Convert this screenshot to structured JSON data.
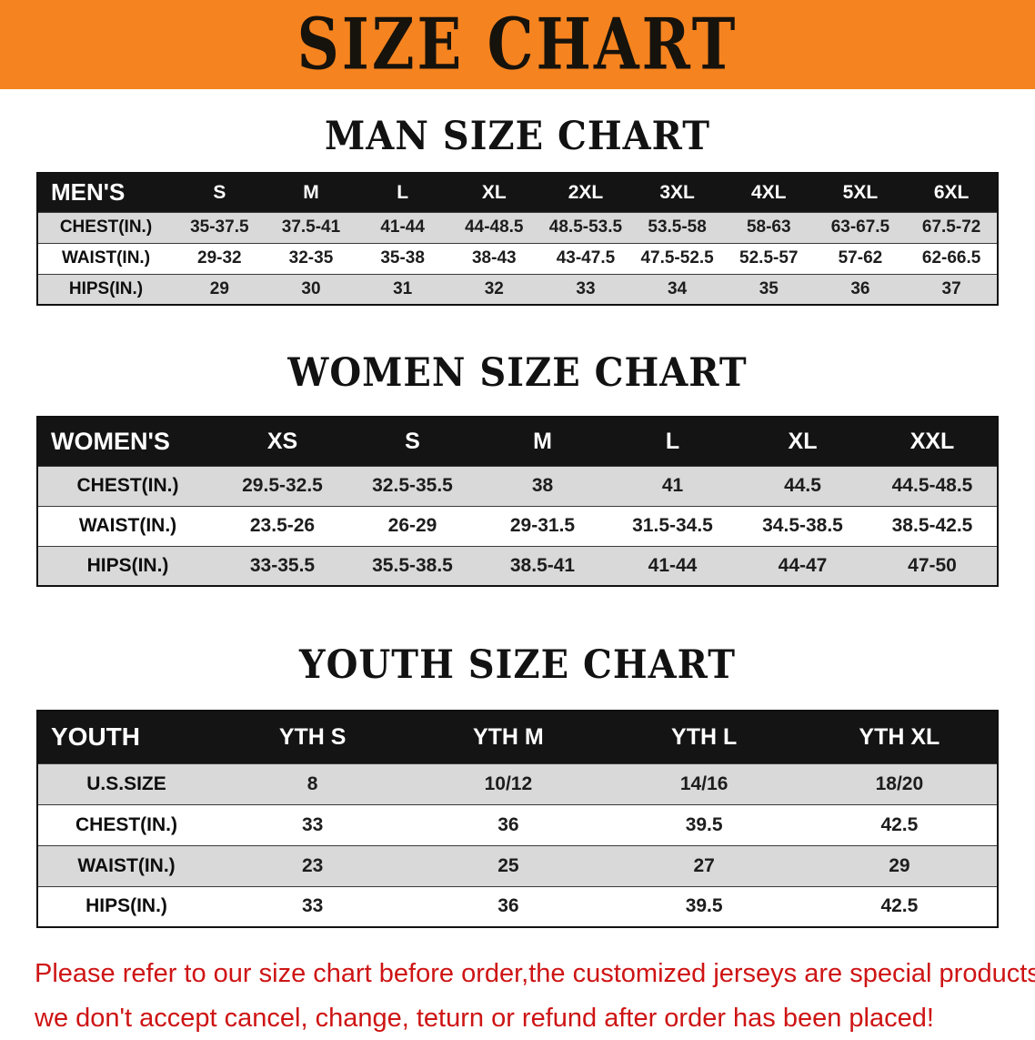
{
  "banner": {
    "title": "SIZE CHART",
    "background_color": "#F5831F",
    "text_color": "#16120C"
  },
  "sections": {
    "men": {
      "heading": "MAN SIZE CHART",
      "header_label": "MEN'S",
      "columns": [
        "S",
        "M",
        "L",
        "XL",
        "2XL",
        "3XL",
        "4XL",
        "5XL",
        "6XL"
      ],
      "rows": [
        {
          "label": "CHEST(IN.)",
          "values": [
            "35-37.5",
            "37.5-41",
            "41-44",
            "44-48.5",
            "48.5-53.5",
            "53.5-58",
            "58-63",
            "63-67.5",
            "67.5-72"
          ]
        },
        {
          "label": "WAIST(IN.)",
          "values": [
            "29-32",
            "32-35",
            "35-38",
            "38-43",
            "43-47.5",
            "47.5-52.5",
            "52.5-57",
            "57-62",
            "62-66.5"
          ]
        },
        {
          "label": "HIPS(IN.)",
          "values": [
            "29",
            "30",
            "31",
            "32",
            "33",
            "34",
            "35",
            "36",
            "37"
          ]
        }
      ]
    },
    "women": {
      "heading": "WOMEN SIZE CHART",
      "header_label": "WOMEN'S",
      "columns": [
        "XS",
        "S",
        "M",
        "L",
        "XL",
        "XXL"
      ],
      "rows": [
        {
          "label": "CHEST(IN.)",
          "values": [
            "29.5-32.5",
            "32.5-35.5",
            "38",
            "41",
            "44.5",
            "44.5-48.5"
          ]
        },
        {
          "label": "WAIST(IN.)",
          "values": [
            "23.5-26",
            "26-29",
            "29-31.5",
            "31.5-34.5",
            "34.5-38.5",
            "38.5-42.5"
          ]
        },
        {
          "label": "HIPS(IN.)",
          "values": [
            "33-35.5",
            "35.5-38.5",
            "38.5-41",
            "41-44",
            "44-47",
            "47-50"
          ]
        }
      ]
    },
    "youth": {
      "heading": "YOUTH SIZE CHART",
      "header_label": "YOUTH",
      "columns": [
        "YTH S",
        "YTH M",
        "YTH L",
        "YTH XL"
      ],
      "rows": [
        {
          "label": "U.S.SIZE",
          "values": [
            "8",
            "10/12",
            "14/16",
            "18/20"
          ]
        },
        {
          "label": "CHEST(IN.)",
          "values": [
            "33",
            "36",
            "39.5",
            "42.5"
          ]
        },
        {
          "label": "WAIST(IN.)",
          "values": [
            "23",
            "25",
            "27",
            "29"
          ]
        },
        {
          "label": "HIPS(IN.)",
          "values": [
            "33",
            "36",
            "39.5",
            "42.5"
          ]
        }
      ]
    }
  },
  "table_style": {
    "header_background": "#141414",
    "header_text_color": "#FFFFFF",
    "stripe_color": "#D9D9D9"
  },
  "disclaimer": {
    "line1": "Please refer to our size chart before order,the customized jerseys are special products,",
    "line2": "we don't accept cancel, change, teturn or refund after order has been placed!",
    "text_color": "#CE1414"
  }
}
